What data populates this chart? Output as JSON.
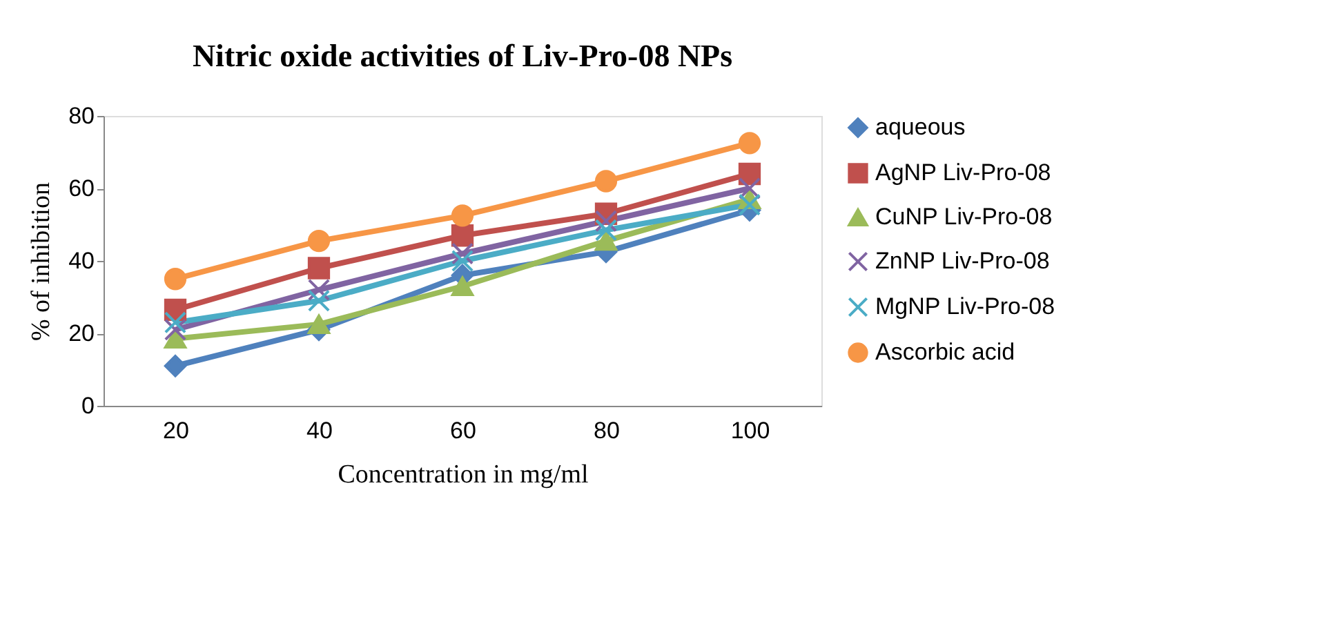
{
  "chart_data": {
    "type": "line",
    "title": "Nitric oxide activities of Liv-Pro-08 NPs",
    "xlabel": "Concentration in mg/ml",
    "ylabel": "% of inhibition",
    "categories": [
      "20",
      "40",
      "60",
      "80",
      "100"
    ],
    "series": [
      {
        "name": "aqueous",
        "color": "#4f81bd",
        "marker": "diamond",
        "values": [
          11,
          21,
          36,
          42.5,
          54
        ]
      },
      {
        "name": "AgNP Liv-Pro-08",
        "color": "#c0504d",
        "marker": "square",
        "values": [
          26.5,
          38,
          47,
          53,
          64
        ]
      },
      {
        "name": "CuNP Liv-Pro-08",
        "color": "#9bbb59",
        "marker": "triangle",
        "values": [
          18.5,
          22.5,
          33,
          45.5,
          57
        ]
      },
      {
        "name": "ZnNP Liv-Pro-08",
        "color": "#8064a2",
        "marker": "cross",
        "values": [
          21,
          32,
          42,
          51,
          60
        ]
      },
      {
        "name": "MgNP Liv-Pro-08",
        "color": "#4bacc6",
        "marker": "cross",
        "values": [
          23,
          29,
          40,
          48.5,
          55.5
        ]
      },
      {
        "name": "Ascorbic acid",
        "color": "#f79646",
        "marker": "circle",
        "values": [
          35,
          45.5,
          52.5,
          62,
          72.5
        ]
      }
    ],
    "ylim": [
      0,
      80
    ],
    "yticks": [
      0,
      20,
      40,
      60,
      80
    ],
    "grid": false,
    "legend": "right",
    "line_style": "solid"
  }
}
